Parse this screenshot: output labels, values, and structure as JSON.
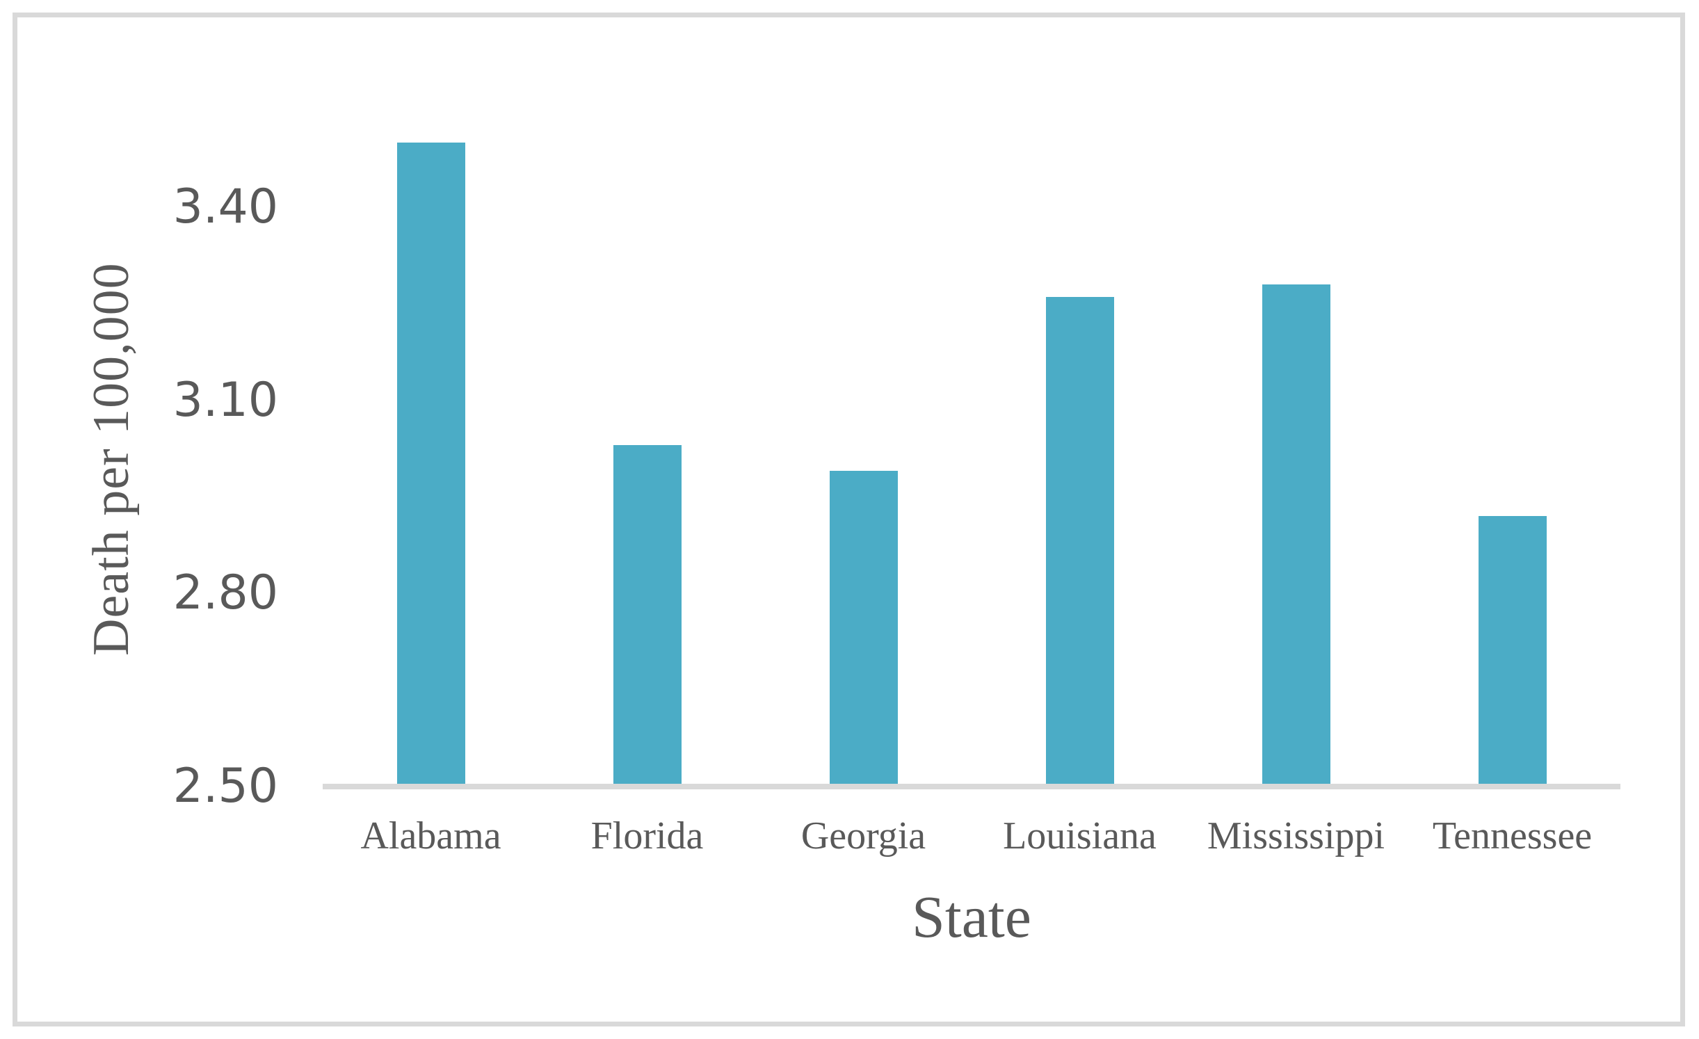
{
  "figure": {
    "border_color": "#d9d9d9",
    "background": "#ffffff"
  },
  "chart_data": {
    "type": "bar",
    "categories": [
      "Alabama",
      "Florida",
      "Georgia",
      "Louisiana",
      "Mississippi",
      "Tennessee"
    ],
    "values": [
      3.5,
      3.03,
      2.99,
      3.26,
      3.28,
      2.92
    ],
    "title": "",
    "xlabel": "State",
    "ylabel": "Death per 100,000",
    "ylim": [
      2.5,
      3.55
    ],
    "yticks": [
      2.5,
      2.8,
      3.1,
      3.4
    ],
    "ytick_labels": [
      "2.50",
      "2.80",
      "3.10",
      "3.40"
    ],
    "bar_color": "#4BACC6",
    "axis_line_color": "#D9D9D9",
    "text_color": "#595959",
    "grid": false,
    "legend": false
  }
}
